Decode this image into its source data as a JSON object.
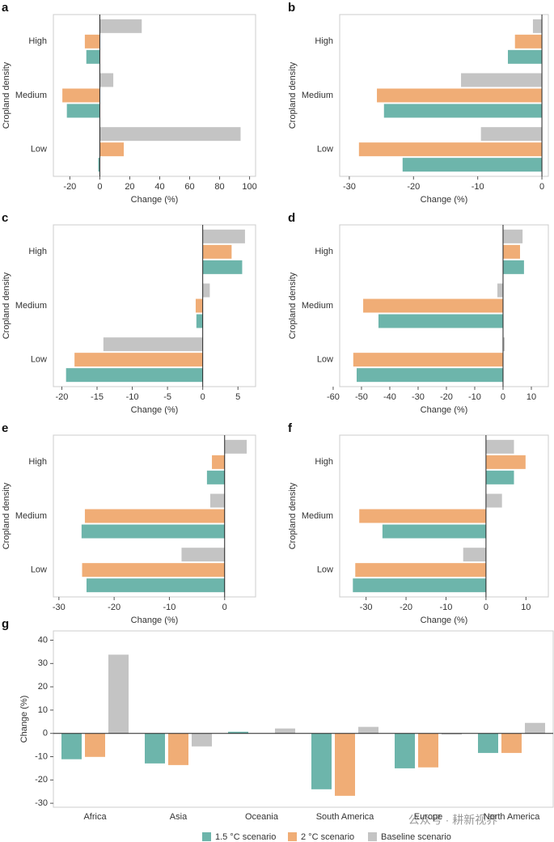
{
  "chart_data": [
    {
      "type": "bar",
      "label": "a",
      "orientation": "horizontal",
      "ylabel": "Cropland density",
      "xlabel": "Change (%)",
      "categories": [
        "High",
        "Medium",
        "Low"
      ],
      "xlim": [
        -31,
        104
      ],
      "xticks": [
        -20,
        0,
        20,
        40,
        60,
        80,
        100
      ],
      "series": [
        {
          "color": "#6db5ab",
          "values": [
            -9,
            -22,
            -1
          ]
        },
        {
          "color": "#f0ad76",
          "values": [
            -10,
            -25,
            16
          ]
        },
        {
          "color": "#c4c4c4",
          "values": [
            28,
            9,
            94
          ]
        }
      ]
    },
    {
      "type": "bar",
      "label": "b",
      "orientation": "horizontal",
      "ylabel": "Cropland density",
      "xlabel": "Change (%)",
      "categories": [
        "High",
        "Medium",
        "Low"
      ],
      "xlim": [
        -31.5,
        1
      ],
      "xticks": [
        -30,
        -20,
        -10,
        0
      ],
      "series": [
        {
          "color": "#6db5ab",
          "values": [
            -5.3,
            -24.6,
            -21.7
          ]
        },
        {
          "color": "#f0ad76",
          "values": [
            -4.2,
            -25.7,
            -28.5
          ]
        },
        {
          "color": "#c4c4c4",
          "values": [
            -1.4,
            -12.6,
            -9.5
          ]
        }
      ]
    },
    {
      "type": "bar",
      "label": "c",
      "orientation": "horizontal",
      "ylabel": "Cropland density",
      "xlabel": "Change (%)",
      "categories": [
        "High",
        "Medium",
        "Low"
      ],
      "xlim": [
        -21.2,
        7.5
      ],
      "xticks": [
        -20,
        -15,
        -10,
        -5,
        0,
        5
      ],
      "series": [
        {
          "color": "#6db5ab",
          "values": [
            5.6,
            -0.9,
            -19.4
          ]
        },
        {
          "color": "#f0ad76",
          "values": [
            4.1,
            -1,
            -18.2
          ]
        },
        {
          "color": "#c4c4c4",
          "values": [
            6,
            1,
            -14.1
          ]
        }
      ]
    },
    {
      "type": "bar",
      "label": "d",
      "orientation": "horizontal",
      "ylabel": "Cropland density",
      "xlabel": "Change (%)",
      "categories": [
        "High",
        "Medium",
        "Low"
      ],
      "xlim": [
        -57.7,
        16
      ],
      "xticks": [
        -60,
        -50,
        -40,
        -30,
        -20,
        -10,
        0,
        10
      ],
      "series": [
        {
          "color": "#6db5ab",
          "values": [
            7.4,
            -44,
            -51.7
          ]
        },
        {
          "color": "#f0ad76",
          "values": [
            6,
            -49.4,
            -52.9
          ]
        },
        {
          "color": "#c4c4c4",
          "values": [
            6.9,
            -2,
            0.6
          ]
        }
      ]
    },
    {
      "type": "bar",
      "label": "e",
      "orientation": "horizontal",
      "ylabel": "Cropland density",
      "xlabel": "Change (%)",
      "categories": [
        "High",
        "Medium",
        "Low"
      ],
      "xlim": [
        -31,
        5.6
      ],
      "xticks": [
        -30,
        -20,
        -10,
        0
      ],
      "series": [
        {
          "color": "#6db5ab",
          "values": [
            -3.2,
            -25.9,
            -25
          ]
        },
        {
          "color": "#f0ad76",
          "values": [
            -2.3,
            -25.3,
            -25.8
          ]
        },
        {
          "color": "#c4c4c4",
          "values": [
            4,
            -2.6,
            -7.8
          ]
        }
      ]
    },
    {
      "type": "bar",
      "label": "f",
      "orientation": "horizontal",
      "ylabel": "Cropland density",
      "xlabel": "Change (%)",
      "categories": [
        "High",
        "Medium",
        "Low"
      ],
      "xlim": [
        -36.6,
        15.6
      ],
      "xticks": [
        -30,
        -20,
        -10,
        0,
        10
      ],
      "series": [
        {
          "color": "#6db5ab",
          "values": [
            7,
            -25.9,
            -33.3
          ]
        },
        {
          "color": "#f0ad76",
          "values": [
            9.9,
            -31.7,
            -32.7
          ]
        },
        {
          "color": "#c4c4c4",
          "values": [
            7,
            4,
            -5.7
          ]
        }
      ]
    },
    {
      "type": "bar",
      "label": "g",
      "orientation": "vertical",
      "ylabel": "Change (%)",
      "categories": [
        "Africa",
        "Asia",
        "Oceania",
        "South America",
        "Europe",
        "North America"
      ],
      "ylim": [
        -31.7,
        44
      ],
      "yticks": [
        -30,
        -20,
        -10,
        0,
        10,
        20,
        30,
        40
      ],
      "legend": "bottom",
      "series": [
        {
          "name": "1.5 °C scenario",
          "color": "#6db5ab",
          "values": [
            -11.1,
            -12.9,
            0.7,
            -24,
            -15,
            -8.4
          ]
        },
        {
          "name": "2 °C scenario",
          "color": "#f0ad76",
          "values": [
            -10.1,
            -13.6,
            0,
            -26.8,
            -14.6,
            -8.4
          ]
        },
        {
          "name": "Baseline scenario",
          "color": "#c4c4c4",
          "values": [
            33.8,
            -5.6,
            2.1,
            2.8,
            -0.5,
            4.5
          ]
        }
      ]
    }
  ],
  "watermark": "公众号 · 耕新视界"
}
